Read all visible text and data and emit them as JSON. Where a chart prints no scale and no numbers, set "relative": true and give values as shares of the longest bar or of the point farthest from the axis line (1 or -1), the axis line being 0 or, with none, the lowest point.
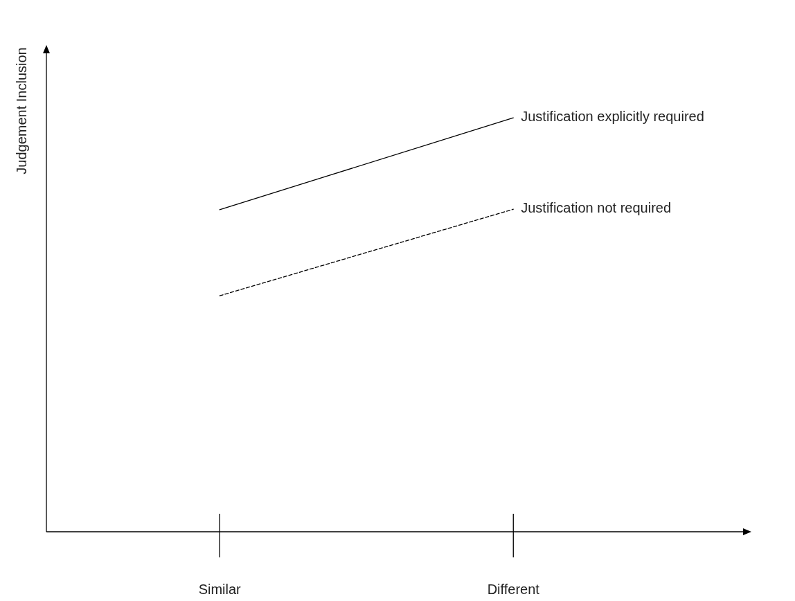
{
  "chart_data": {
    "type": "line",
    "ylabel": "Judgement Inclusion",
    "categories": [
      "Similar",
      "Different"
    ],
    "relative": true,
    "marker": "none",
    "series": [
      {
        "name": "Justification explicitly required",
        "color": "#000000",
        "line_style": "solid",
        "values": [
          0.778,
          1
        ]
      },
      {
        "name": "Justification not required",
        "color": "#000000",
        "line_style": "dashed",
        "values": [
          0.57,
          0.779
        ]
      }
    ]
  }
}
